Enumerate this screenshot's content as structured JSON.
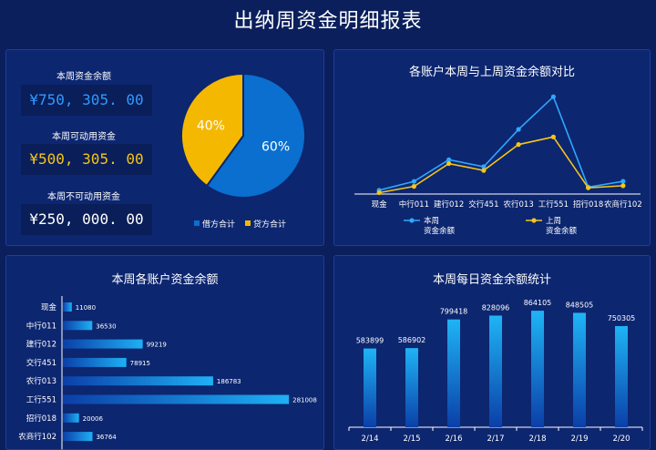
{
  "header": {
    "title": "出纳周资金明细报表"
  },
  "kpis": [
    {
      "label": "本周资金余额",
      "value": "¥750, 305. 00",
      "color": "#2f9bff"
    },
    {
      "label": "本周可动用资金",
      "value": "¥500, 305. 00",
      "color": "#f5c518"
    },
    {
      "label": "本周不可动用资金",
      "value": "¥250, 000. 00",
      "color": "#ffffff"
    }
  ],
  "pie": {
    "slices": [
      {
        "name": "借方合计",
        "value": 60,
        "label": "60%",
        "color": "#0a6fcf"
      },
      {
        "name": "贷方合计",
        "value": 40,
        "label": "40%",
        "color": "#f5b800"
      }
    ]
  },
  "line_panel": {
    "title": "各账户本周与上周资金余额对比"
  },
  "hbar_panel": {
    "title": "本周各账户资金余额"
  },
  "vbar_panel": {
    "title": "本周每日资金余额统计"
  },
  "chart_data": [
    {
      "type": "line",
      "categories": [
        "现金",
        "中行011",
        "建行012",
        "交行451",
        "农行013",
        "工行551",
        "招行018",
        "农商行102"
      ],
      "series": [
        {
          "name": "本周\n资金余额",
          "color": "#2fa8ff",
          "values": [
            11080,
            36530,
            99219,
            78915,
            186783,
            281008,
            20006,
            36764
          ]
        },
        {
          "name": "上周\n资金余额",
          "color": "#f5c518",
          "values": [
            4000,
            22000,
            88000,
            68000,
            143000,
            165000,
            18000,
            24000
          ]
        }
      ],
      "ylim": [
        0,
        300000
      ]
    },
    {
      "type": "bar",
      "orientation": "horizontal",
      "categories": [
        "现金",
        "中行011",
        "建行012",
        "交行451",
        "农行013",
        "工行551",
        "招行018",
        "农商行102"
      ],
      "values": [
        11080,
        36530,
        99219,
        78915,
        186783,
        281008,
        20006,
        36764
      ],
      "xlim": [
        0,
        290000
      ]
    },
    {
      "type": "bar",
      "categories": [
        "2/14",
        "2/15",
        "2/16",
        "2/17",
        "2/18",
        "2/19",
        "2/20"
      ],
      "values": [
        583899,
        586902,
        799418,
        828096,
        864105,
        848505,
        750305
      ],
      "ylim": [
        0,
        1000000
      ]
    }
  ]
}
